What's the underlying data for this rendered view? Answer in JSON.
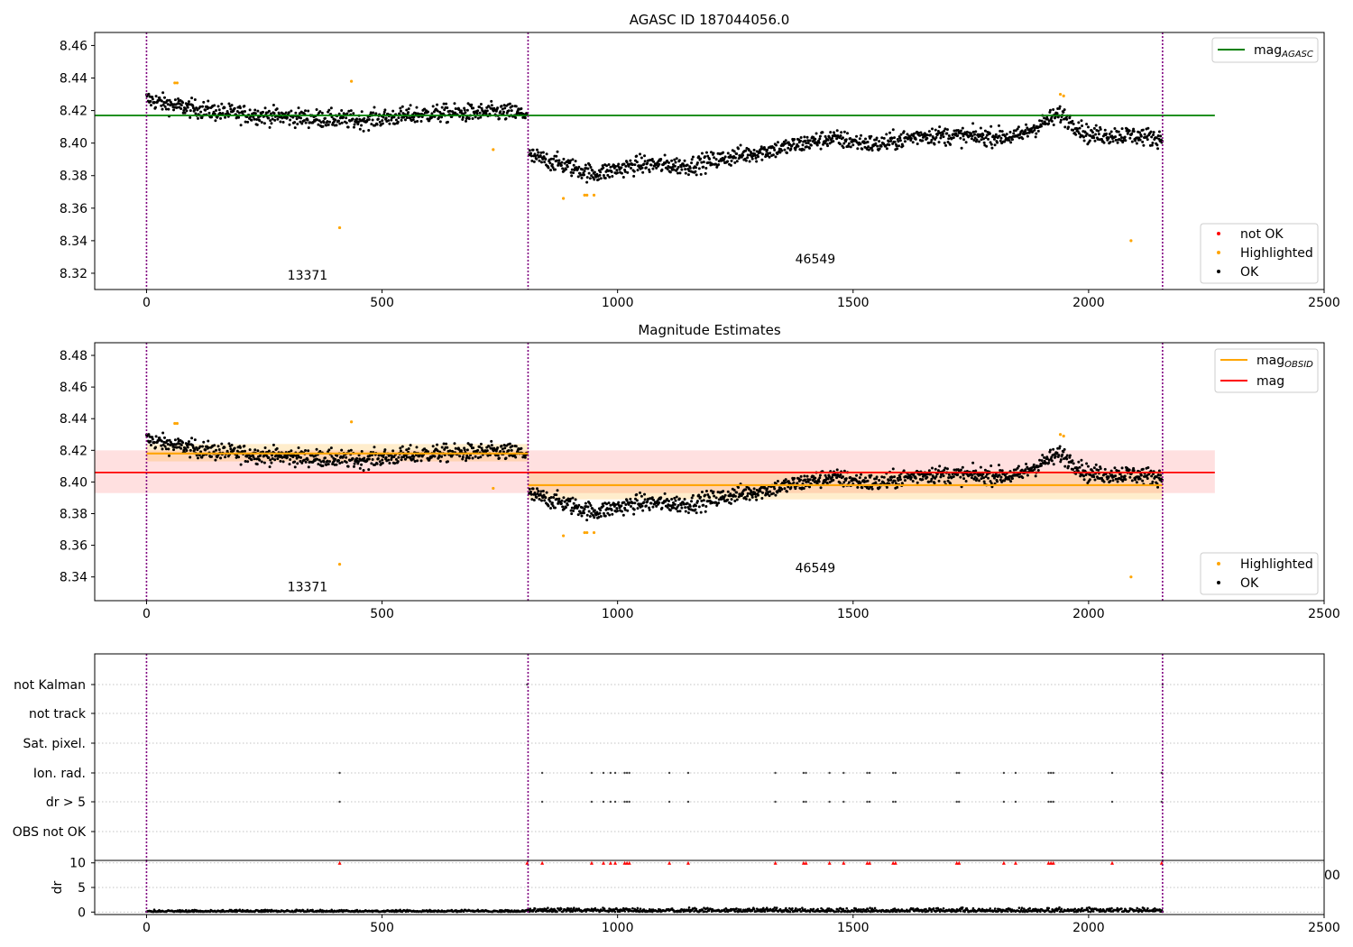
{
  "chart_data": [
    {
      "type": "scatter",
      "title": "AGASC ID 187044056.0",
      "xlim": [
        -110,
        2500
      ],
      "ylim": [
        8.31,
        8.468
      ],
      "xticks": [
        0,
        500,
        1000,
        1500,
        2000,
        2500
      ],
      "yticks": [
        8.32,
        8.34,
        8.36,
        8.38,
        8.4,
        8.42,
        8.44,
        8.46
      ],
      "obs_boundaries": [
        0,
        810,
        2157
      ],
      "obs_labels": [
        {
          "text": "13371",
          "x": 405,
          "y": 8.316
        },
        {
          "text": "46549",
          "x": 1483,
          "y": 8.326
        }
      ],
      "agasc_mag": 8.417,
      "agasc_line_x": [
        -110,
        2268
      ],
      "trend": {
        "x": [
          0,
          60,
          150,
          300,
          450,
          600,
          750,
          808,
          812,
          870,
          950,
          1050,
          1150,
          1250,
          1350,
          1450,
          1550,
          1650,
          1750,
          1850,
          1940,
          2000,
          2080,
          2157
        ],
        "y": [
          8.427,
          8.423,
          8.419,
          8.416,
          8.414,
          8.418,
          8.419,
          8.418,
          8.392,
          8.388,
          8.381,
          8.387,
          8.386,
          8.392,
          8.397,
          8.403,
          8.399,
          8.405,
          8.404,
          8.404,
          8.418,
          8.405,
          8.405,
          8.403
        ]
      },
      "noise": 0.0055,
      "highlighted": [
        {
          "x": 60,
          "y": 8.437
        },
        {
          "x": 65,
          "y": 8.437
        },
        {
          "x": 410,
          "y": 8.348
        },
        {
          "x": 435,
          "y": 8.438
        },
        {
          "x": 736,
          "y": 8.396
        },
        {
          "x": 885,
          "y": 8.366
        },
        {
          "x": 930,
          "y": 8.368
        },
        {
          "x": 935,
          "y": 8.368
        },
        {
          "x": 950,
          "y": 8.368
        },
        {
          "x": 1940,
          "y": 8.43
        },
        {
          "x": 1947,
          "y": 8.429
        },
        {
          "x": 2090,
          "y": 8.34
        }
      ],
      "legend_line": {
        "label": "mag",
        "sub": "AGASC",
        "color": "#008000"
      },
      "legend_points": [
        {
          "label": "not OK",
          "color": "#ff0000"
        },
        {
          "label": "Highlighted",
          "color": "#ffa500"
        },
        {
          "label": "OK",
          "color": "#000000"
        }
      ]
    },
    {
      "type": "scatter",
      "title": "Magnitude Estimates",
      "xlim": [
        -110,
        2500
      ],
      "ylim": [
        8.325,
        8.488
      ],
      "xticks": [
        0,
        500,
        1000,
        1500,
        2000,
        2500
      ],
      "yticks": [
        8.34,
        8.36,
        8.38,
        8.4,
        8.42,
        8.44,
        8.46,
        8.48
      ],
      "obs_labels": [
        {
          "text": "13371",
          "x": 405,
          "y": 8.331
        },
        {
          "text": "46549",
          "x": 1483,
          "y": 8.343
        }
      ],
      "mag_obsid": [
        {
          "x": [
            0,
            810
          ],
          "y": 8.418,
          "band": [
            8.413,
            8.424
          ]
        },
        {
          "x": [
            810,
            2157
          ],
          "y": 8.398,
          "band": [
            8.389,
            8.407
          ]
        }
      ],
      "mag": {
        "x": [
          -110,
          2268
        ],
        "y": 8.406,
        "band": [
          8.393,
          8.42
        ]
      },
      "legend_lines": [
        {
          "label": "mag",
          "sub": "OBSID",
          "color": "#ffa500"
        },
        {
          "label": "mag",
          "sub": "",
          "color": "#ff0000"
        }
      ],
      "legend_points": [
        {
          "label": "Highlighted",
          "color": "#ffa500"
        },
        {
          "label": "OK",
          "color": "#000000"
        }
      ]
    },
    {
      "type": "scatter",
      "xlim": [
        -110,
        2500
      ],
      "flag_labels": [
        "not Kalman",
        "not track",
        "Sat. pixel.",
        "Ion. rad.",
        "dr > 5",
        "OBS not OK"
      ],
      "flag_events": [
        {
          "flag": "not Kalman",
          "x": [
            808,
            2157
          ]
        },
        {
          "flag": "Ion. rad.",
          "x": [
            410,
            840,
            945,
            970,
            985,
            995,
            1015,
            1020,
            1025,
            1110,
            1150,
            1335,
            1395,
            1400,
            1450,
            1480,
            1530,
            1535,
            1585,
            1590,
            1720,
            1725,
            1820,
            1845,
            1915,
            1920,
            1925,
            2050,
            2155
          ]
        },
        {
          "flag": "dr > 5",
          "x": [
            410,
            840,
            945,
            970,
            985,
            995,
            1015,
            1020,
            1025,
            1110,
            1150,
            1335,
            1395,
            1400,
            1450,
            1480,
            1530,
            1535,
            1585,
            1590,
            1720,
            1725,
            1820,
            1845,
            1915,
            1920,
            1925,
            2050,
            2155
          ]
        }
      ]
    },
    {
      "type": "scatter",
      "ylabel": "dr",
      "xlim": [
        -110,
        2500
      ],
      "ylim": [
        -0.5,
        10.5
      ],
      "xticks": [
        0,
        500,
        1000,
        1500,
        2000,
        2500
      ],
      "yticks": [
        0,
        5,
        10
      ],
      "clipped_tick": "00",
      "dr_outliers_x": [
        410,
        808,
        840,
        945,
        970,
        985,
        995,
        1015,
        1020,
        1025,
        1110,
        1150,
        1335,
        1395,
        1400,
        1450,
        1480,
        1530,
        1535,
        1585,
        1590,
        1720,
        1725,
        1820,
        1845,
        1915,
        1920,
        1925,
        2050,
        2155
      ]
    }
  ]
}
